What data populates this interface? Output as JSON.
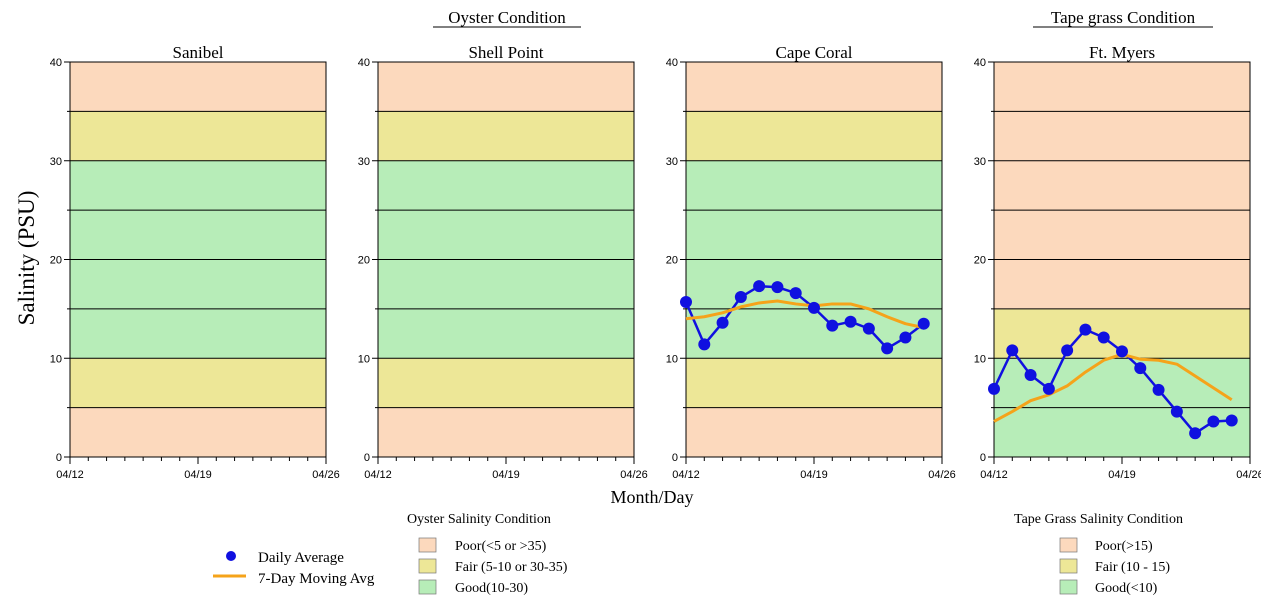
{
  "header": {
    "oyster_title": "Oyster Condition",
    "tapegrass_title": "Tape grass Condition"
  },
  "colors": {
    "poor": "#fcd9bd",
    "fair": "#ede797",
    "good": "#b7edb8",
    "daily": "#1010e0",
    "moving": "#f5a31a"
  },
  "chart_data": {
    "type": "line",
    "ylabel": "Salinity (PSU)",
    "xlabel": "Month/Day",
    "ylim": [
      0,
      40
    ],
    "yticks": [
      0,
      10,
      20,
      30,
      40
    ],
    "xticks": [
      "04/12",
      "04/19",
      "04/26"
    ],
    "grid": true,
    "panels": [
      {
        "title": "Sanibel",
        "zones": [
          {
            "from": 0,
            "to": 5,
            "condition": "poor"
          },
          {
            "from": 5,
            "to": 10,
            "condition": "fair"
          },
          {
            "from": 10,
            "to": 30,
            "condition": "good"
          },
          {
            "from": 30,
            "to": 35,
            "condition": "fair"
          },
          {
            "from": 35,
            "to": 40,
            "condition": "poor"
          }
        ],
        "series": []
      },
      {
        "title": "Shell Point",
        "zones": [
          {
            "from": 0,
            "to": 5,
            "condition": "poor"
          },
          {
            "from": 5,
            "to": 10,
            "condition": "fair"
          },
          {
            "from": 10,
            "to": 30,
            "condition": "good"
          },
          {
            "from": 30,
            "to": 35,
            "condition": "fair"
          },
          {
            "from": 35,
            "to": 40,
            "condition": "poor"
          }
        ],
        "series": []
      },
      {
        "title": "Cape Coral",
        "zones": [
          {
            "from": 0,
            "to": 5,
            "condition": "poor"
          },
          {
            "from": 5,
            "to": 10,
            "condition": "fair"
          },
          {
            "from": 10,
            "to": 30,
            "condition": "good"
          },
          {
            "from": 30,
            "to": 35,
            "condition": "fair"
          },
          {
            "from": 35,
            "to": 40,
            "condition": "poor"
          }
        ],
        "series": [
          {
            "name": "Daily Average",
            "x": [
              "04/12",
              "04/13",
              "04/14",
              "04/15",
              "04/16",
              "04/17",
              "04/18",
              "04/19",
              "04/20",
              "04/21",
              "04/22",
              "04/23",
              "04/24",
              "04/25"
            ],
            "values": [
              15.7,
              11.4,
              13.6,
              16.2,
              17.3,
              17.2,
              16.6,
              15.1,
              13.3,
              13.7,
              13.0,
              11.0,
              12.1,
              13.5
            ]
          },
          {
            "name": "7-Day Moving Avg",
            "x": [
              "04/12",
              "04/13",
              "04/14",
              "04/15",
              "04/16",
              "04/17",
              "04/18",
              "04/19",
              "04/20",
              "04/21",
              "04/22",
              "04/23",
              "04/24",
              "04/25"
            ],
            "values": [
              14.0,
              14.2,
              14.6,
              15.2,
              15.6,
              15.8,
              15.5,
              15.3,
              15.5,
              15.5,
              15.0,
              14.2,
              13.5,
              13.1
            ]
          }
        ]
      },
      {
        "title": "Ft. Myers",
        "zones": [
          {
            "from": 0,
            "to": 10,
            "condition": "good"
          },
          {
            "from": 10,
            "to": 15,
            "condition": "fair"
          },
          {
            "from": 15,
            "to": 40,
            "condition": "poor"
          }
        ],
        "series": [
          {
            "name": "Daily Average",
            "x": [
              "04/12",
              "04/13",
              "04/14",
              "04/15",
              "04/16",
              "04/17",
              "04/18",
              "04/19",
              "04/20",
              "04/21",
              "04/22",
              "04/23",
              "04/24",
              "04/25"
            ],
            "values": [
              6.9,
              10.8,
              8.3,
              6.9,
              10.8,
              12.9,
              12.1,
              10.7,
              9.0,
              6.8,
              4.6,
              2.4,
              3.6,
              3.7
            ]
          },
          {
            "name": "7-Day Moving Avg",
            "x": [
              "04/12",
              "04/13",
              "04/14",
              "04/15",
              "04/16",
              "04/17",
              "04/18",
              "04/19",
              "04/20",
              "04/21",
              "04/22",
              "04/23",
              "04/24",
              "04/25"
            ],
            "values": [
              3.6,
              4.6,
              5.7,
              6.3,
              7.2,
              8.6,
              9.8,
              10.4,
              9.9,
              9.8,
              9.4,
              8.2,
              7.0,
              5.8
            ]
          }
        ]
      }
    ]
  },
  "legend": {
    "series": [
      {
        "name": "Daily Average"
      },
      {
        "name": "7-Day Moving Avg"
      }
    ],
    "oyster": {
      "title": "Oyster Salinity Condition",
      "items": [
        {
          "label": "Poor(<5 or >35)",
          "condition": "poor"
        },
        {
          "label": "Fair (5-10 or 30-35)",
          "condition": "fair"
        },
        {
          "label": "Good(10-30)",
          "condition": "good"
        }
      ]
    },
    "tapegrass": {
      "title": "Tape Grass Salinity Condition",
      "items": [
        {
          "label": "Poor(>15)",
          "condition": "poor"
        },
        {
          "label": "Fair (10 - 15)",
          "condition": "fair"
        },
        {
          "label": "Good(<10)",
          "condition": "good"
        }
      ]
    }
  }
}
